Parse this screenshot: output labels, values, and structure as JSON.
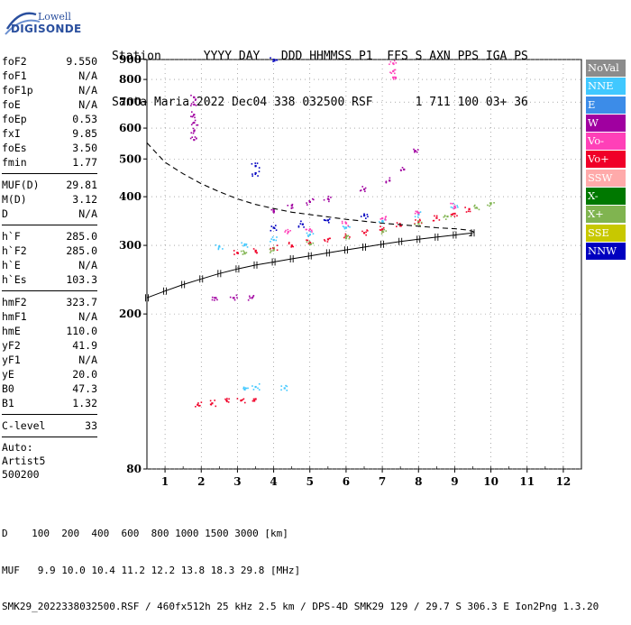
{
  "logo": {
    "line1": "Lowell",
    "line2": "DIGISONDE"
  },
  "header": {
    "labels": [
      "Station",
      "YYYY",
      "DAY",
      "DDD",
      "HHMMSS",
      "P1",
      "FFS",
      "S",
      "AXN",
      "PPS",
      "IGA",
      "PS"
    ],
    "station": "Santa Maria",
    "year": "2022",
    "day": "Dec04",
    "ddd": "338",
    "hhmmss": "032500",
    "p1": "RSF",
    "ffs": "",
    "s": "1",
    "axn": "711",
    "pps": "100",
    "iga": "03+",
    "ps": "36"
  },
  "params": {
    "group1": [
      {
        "name": "foF2",
        "value": "9.550"
      },
      {
        "name": "foF1",
        "value": "N/A"
      },
      {
        "name": "foF1p",
        "value": "N/A"
      },
      {
        "name": "foE",
        "value": "N/A"
      },
      {
        "name": "foEp",
        "value": "0.53"
      },
      {
        "name": "fxI",
        "value": "9.85"
      },
      {
        "name": "foEs",
        "value": "3.50"
      },
      {
        "name": "fmin",
        "value": "1.77"
      }
    ],
    "group2": [
      {
        "name": "MUF(D)",
        "value": "29.81"
      },
      {
        "name": "M(D)",
        "value": "3.12"
      },
      {
        "name": "D",
        "value": "N/A"
      }
    ],
    "group3": [
      {
        "name": "h`F",
        "value": "285.0"
      },
      {
        "name": "h`F2",
        "value": "285.0"
      },
      {
        "name": "h`E",
        "value": "N/A"
      },
      {
        "name": "h`Es",
        "value": "103.3"
      }
    ],
    "group4": [
      {
        "name": "hmF2",
        "value": "323.7"
      },
      {
        "name": "hmF1",
        "value": "N/A"
      },
      {
        "name": "hmE",
        "value": "110.0"
      },
      {
        "name": "yF2",
        "value": "41.9"
      },
      {
        "name": "yF1",
        "value": "N/A"
      },
      {
        "name": "yE",
        "value": "20.0"
      },
      {
        "name": "B0",
        "value": "47.3"
      },
      {
        "name": "B1",
        "value": "1.32"
      }
    ],
    "group5": [
      {
        "name": "C-level",
        "value": "33"
      }
    ],
    "auto": [
      "Auto:",
      "Artist5",
      "500200"
    ]
  },
  "legend": [
    {
      "label": "NoVal",
      "color": "#8c8c8c"
    },
    {
      "label": "NNE",
      "color": "#40c8ff"
    },
    {
      "label": "E",
      "color": "#3c8ce8"
    },
    {
      "label": "W",
      "color": "#a000a0"
    },
    {
      "label": "Vo-",
      "color": "#ff40b8"
    },
    {
      "label": "Vo+",
      "color": "#f00028"
    },
    {
      "label": "SSW",
      "color": "#ffaaaa"
    },
    {
      "label": "X-",
      "color": "#007800"
    },
    {
      "label": "X+",
      "color": "#80b450"
    },
    {
      "label": "SSE",
      "color": "#c8c800"
    },
    {
      "label": "NNW",
      "color": "#0000c0"
    }
  ],
  "chart_data": {
    "type": "scatter",
    "x_ticks": [
      1,
      2,
      3,
      4,
      5,
      6,
      7,
      8,
      9,
      10,
      11,
      12
    ],
    "y_ticks": [
      80,
      200,
      300,
      400,
      500,
      600,
      700,
      800,
      900
    ],
    "xlim": [
      0.5,
      12.5
    ],
    "ylim": [
      80,
      900
    ],
    "y_scale": "log",
    "grid": "dotted",
    "legend_placement": "right",
    "series": [
      {
        "color": "#f00028",
        "points": [
          [
            3,
            287
          ],
          [
            3.5,
            291
          ],
          [
            4,
            295
          ],
          [
            4.5,
            300
          ],
          [
            5,
            305
          ],
          [
            5.5,
            311
          ],
          [
            6,
            317
          ],
          [
            6.5,
            323
          ],
          [
            7,
            330
          ],
          [
            7.5,
            337
          ],
          [
            8,
            345
          ],
          [
            8.5,
            353
          ],
          [
            9,
            362
          ],
          [
            9.4,
            372
          ]
        ]
      },
      {
        "color": "#80b450",
        "points": [
          [
            3.2,
            286
          ],
          [
            4,
            292
          ],
          [
            5,
            302
          ],
          [
            6,
            313
          ],
          [
            7,
            326
          ],
          [
            8,
            341
          ],
          [
            8.8,
            356
          ],
          [
            9.6,
            375
          ],
          [
            10,
            385
          ]
        ]
      },
      {
        "color": "#40c8ff",
        "points": [
          [
            2.5,
            298
          ],
          [
            3.2,
            302
          ],
          [
            4,
            310
          ],
          [
            5,
            320
          ],
          [
            6,
            333
          ],
          [
            7,
            346
          ],
          [
            8,
            360
          ],
          [
            9,
            378
          ]
        ]
      },
      {
        "color": "#a000a0",
        "points": [
          [
            4,
            370
          ],
          [
            4.5,
            380
          ],
          [
            5,
            388
          ],
          [
            5.5,
            395
          ],
          [
            6.5,
            418
          ],
          [
            7.2,
            440
          ],
          [
            7.6,
            470
          ],
          [
            7.9,
            525
          ]
        ]
      },
      {
        "color": "#ff40b8",
        "points": [
          [
            4.4,
            325
          ],
          [
            5,
            330
          ],
          [
            6,
            342
          ],
          [
            7,
            352
          ],
          [
            8,
            363
          ],
          [
            9,
            378
          ]
        ]
      },
      {
        "color": "#0000c0",
        "points": [
          [
            4,
            333
          ],
          [
            4.8,
            340
          ],
          [
            5.5,
            348
          ],
          [
            6.5,
            358
          ]
        ]
      },
      {
        "color": "#f00028",
        "points": [
          [
            1.9,
            117
          ],
          [
            2.3,
            118
          ],
          [
            2.7,
            120
          ],
          [
            3.1,
            120
          ],
          [
            3.5,
            121
          ]
        ]
      },
      {
        "color": "#a000a0",
        "points": [
          [
            2.4,
            220
          ],
          [
            2.9,
            220
          ],
          [
            3.4,
            220
          ]
        ]
      },
      {
        "color": "#40c8ff",
        "points": [
          [
            3.2,
            128
          ],
          [
            3.5,
            130
          ],
          [
            4.3,
            129
          ]
        ]
      },
      {
        "color": "#a000a0",
        "points": [
          [
            1.8,
            720
          ],
          [
            1.8,
            690
          ],
          [
            1.8,
            650
          ],
          [
            1.8,
            620
          ],
          [
            1.8,
            590
          ],
          [
            1.8,
            560
          ]
        ]
      },
      {
        "color": "#ff40b8",
        "points": [
          [
            7.3,
            880
          ],
          [
            7.3,
            840
          ],
          [
            7.3,
            810
          ]
        ]
      },
      {
        "color": "#0000c0",
        "points": [
          [
            4,
            900
          ],
          [
            3.5,
            480
          ],
          [
            3.5,
            460
          ]
        ]
      }
    ],
    "profile_curve": {
      "style": "dashed",
      "points": [
        [
          0.5,
          550
        ],
        [
          1,
          490
        ],
        [
          1.5,
          458
        ],
        [
          2,
          432
        ],
        [
          2.5,
          412
        ],
        [
          3,
          395
        ],
        [
          3.5,
          382
        ],
        [
          4,
          373
        ],
        [
          4.5,
          365
        ],
        [
          5,
          360
        ],
        [
          5.5,
          355
        ],
        [
          6,
          350
        ],
        [
          6.5,
          346
        ],
        [
          7,
          342
        ],
        [
          7.5,
          339
        ],
        [
          8,
          336
        ],
        [
          8.5,
          333
        ],
        [
          9,
          331
        ],
        [
          9.3,
          329
        ],
        [
          9.5,
          326
        ],
        [
          9.55,
          322
        ],
        [
          9.4,
          317
        ]
      ]
    },
    "model_trace": {
      "style": "ticked",
      "points": [
        [
          0.5,
          220
        ],
        [
          1,
          229
        ],
        [
          1.5,
          238
        ],
        [
          2,
          246
        ],
        [
          2.5,
          254
        ],
        [
          3,
          261
        ],
        [
          3.5,
          267
        ],
        [
          4,
          272
        ],
        [
          4.5,
          277
        ],
        [
          5,
          282
        ],
        [
          5.5,
          287
        ],
        [
          6,
          292
        ],
        [
          6.5,
          297
        ],
        [
          7,
          302
        ],
        [
          7.5,
          307
        ],
        [
          8,
          311
        ],
        [
          8.5,
          315
        ],
        [
          9,
          319
        ],
        [
          9.5,
          323
        ]
      ]
    }
  },
  "footer": {
    "d_label": "D",
    "d_values": "100  200  400  600  800 1000 1500 3000",
    "d_unit": "[km]",
    "muf_label": "MUF",
    "muf_values": "9.9 10.0 10.4 11.2 12.2 13.8 18.3 29.8",
    "muf_unit": "[MHz]",
    "info": "SMK29_2022338032500.RSF / 460fx512h 25 kHz 2.5 km / DPS-4D SMK29 129 / 29.7 S 306.3 E Ion2Png 1.3.20"
  }
}
